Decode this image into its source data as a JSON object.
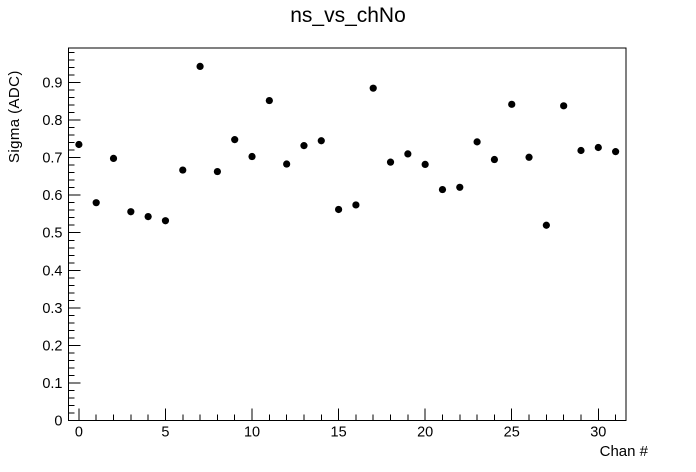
{
  "chart_data": {
    "type": "scatter",
    "title": "ns_vs_chNo",
    "xlabel": "Chan #",
    "ylabel": "Sigma (ADC)",
    "x": [
      0,
      1,
      2,
      3,
      4,
      5,
      6,
      7,
      8,
      9,
      10,
      11,
      12,
      13,
      14,
      15,
      16,
      17,
      18,
      19,
      20,
      21,
      22,
      23,
      24,
      25,
      26,
      27,
      28,
      29,
      30,
      31
    ],
    "y": [
      0.735,
      0.58,
      0.698,
      0.556,
      0.543,
      0.532,
      0.667,
      0.943,
      0.663,
      0.748,
      0.703,
      0.852,
      0.683,
      0.732,
      0.745,
      0.562,
      0.574,
      0.885,
      0.688,
      0.71,
      0.682,
      0.615,
      0.621,
      0.742,
      0.695,
      0.842,
      0.701,
      0.52,
      0.838,
      0.719,
      0.727,
      0.716
    ],
    "xlim": [
      -0.6,
      31.6
    ],
    "ylim": [
      0,
      0.992
    ],
    "x_major_ticks": [
      0,
      5,
      10,
      15,
      20,
      25,
      30
    ],
    "x_tick_labels": [
      "0",
      "5",
      "10",
      "15",
      "20",
      "25",
      "30"
    ],
    "x_minor_step": 1,
    "y_major_ticks": [
      0,
      0.1,
      0.2,
      0.3,
      0.4,
      0.5,
      0.6,
      0.7,
      0.8,
      0.9
    ],
    "y_tick_labels": [
      "0",
      "0.1",
      "0.2",
      "0.3",
      "0.4",
      "0.5",
      "0.6",
      "0.7",
      "0.8",
      "0.9"
    ],
    "y_minor_step": 0.02,
    "grid": false,
    "legend": "none",
    "marker": {
      "shape": "filled-circle",
      "color": "#000000",
      "radius_px": 3.6
    },
    "frame_color": "#000000",
    "background_color": "#ffffff",
    "text_color": "#000000"
  }
}
